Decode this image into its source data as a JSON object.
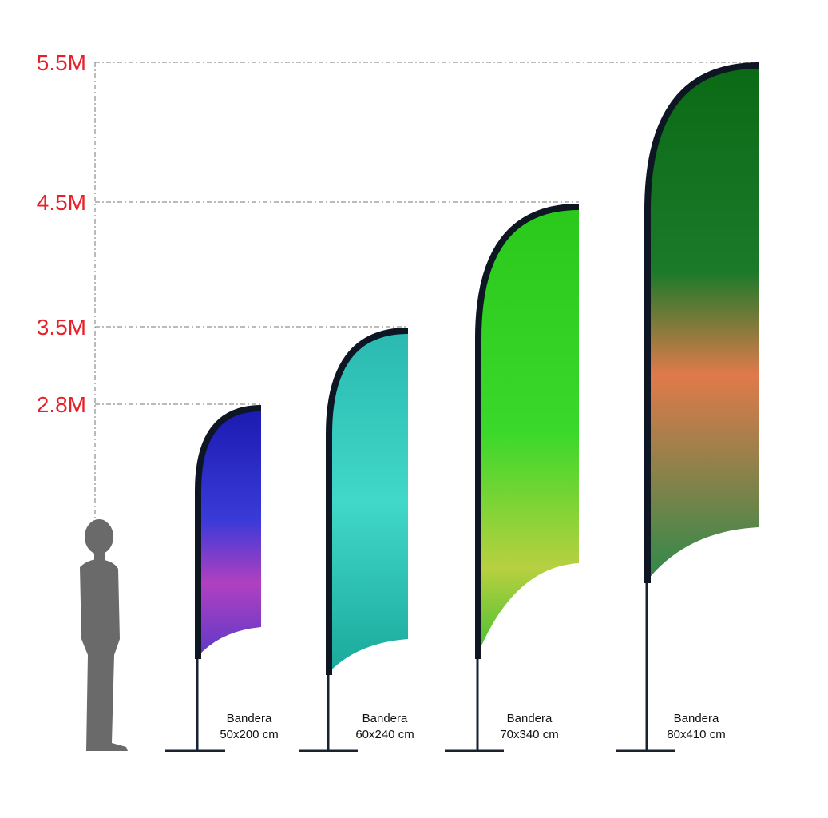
{
  "height_labels": [
    "5.5M",
    "4.5M",
    "3.5M",
    "2.8M"
  ],
  "flags": [
    {
      "name": "Bandera",
      "size": "50x200 cm"
    },
    {
      "name": "Bandera",
      "size": "60x240 cm"
    },
    {
      "name": "Bandera",
      "size": "70x340 cm"
    },
    {
      "name": "Bandera",
      "size": "80x410 cm"
    }
  ]
}
